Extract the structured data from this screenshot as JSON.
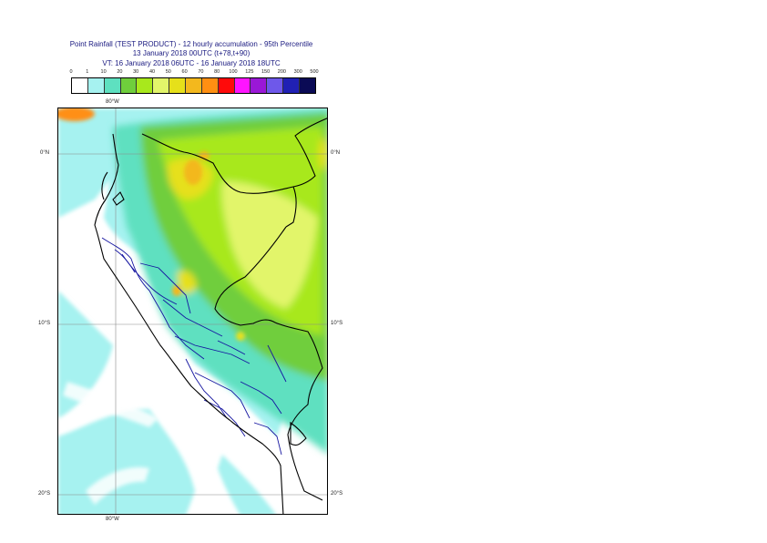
{
  "title": {
    "line1": "Point Rainfall (TEST PRODUCT) - 12 hourly accumulation - 95th Percentile",
    "line2": "13 January 2018 00UTC (t+78,t+90)",
    "line3": "VT: 16 January 2018 06UTC - 16 January 2018 18UTC"
  },
  "legend": {
    "labels": [
      "0",
      "1",
      "10",
      "20",
      "30",
      "40",
      "50",
      "60",
      "70",
      "80",
      "100",
      "125",
      "150",
      "200",
      "300",
      "500"
    ],
    "colors": [
      "#ffffff",
      "#a6f2f0",
      "#5ee0c0",
      "#6fce3c",
      "#a8e81c",
      "#e2f56a",
      "#e6e01a",
      "#f3b81d",
      "#ff8f12",
      "#ff0a0a",
      "#ff14ff",
      "#9a18d6",
      "#6e58ea",
      "#2020b4",
      "#0a0a55"
    ]
  },
  "axes": {
    "lon_top": "80°W",
    "lon_bottom": "80°W",
    "lat_right": [
      "0°N",
      "10°S",
      "20°S"
    ],
    "lat_left": [
      "0°N",
      "10°S",
      "20°S"
    ]
  },
  "colors": {
    "coast": "#000000",
    "regional_borders": "#1515a0",
    "grid": "#8a8a8a"
  }
}
